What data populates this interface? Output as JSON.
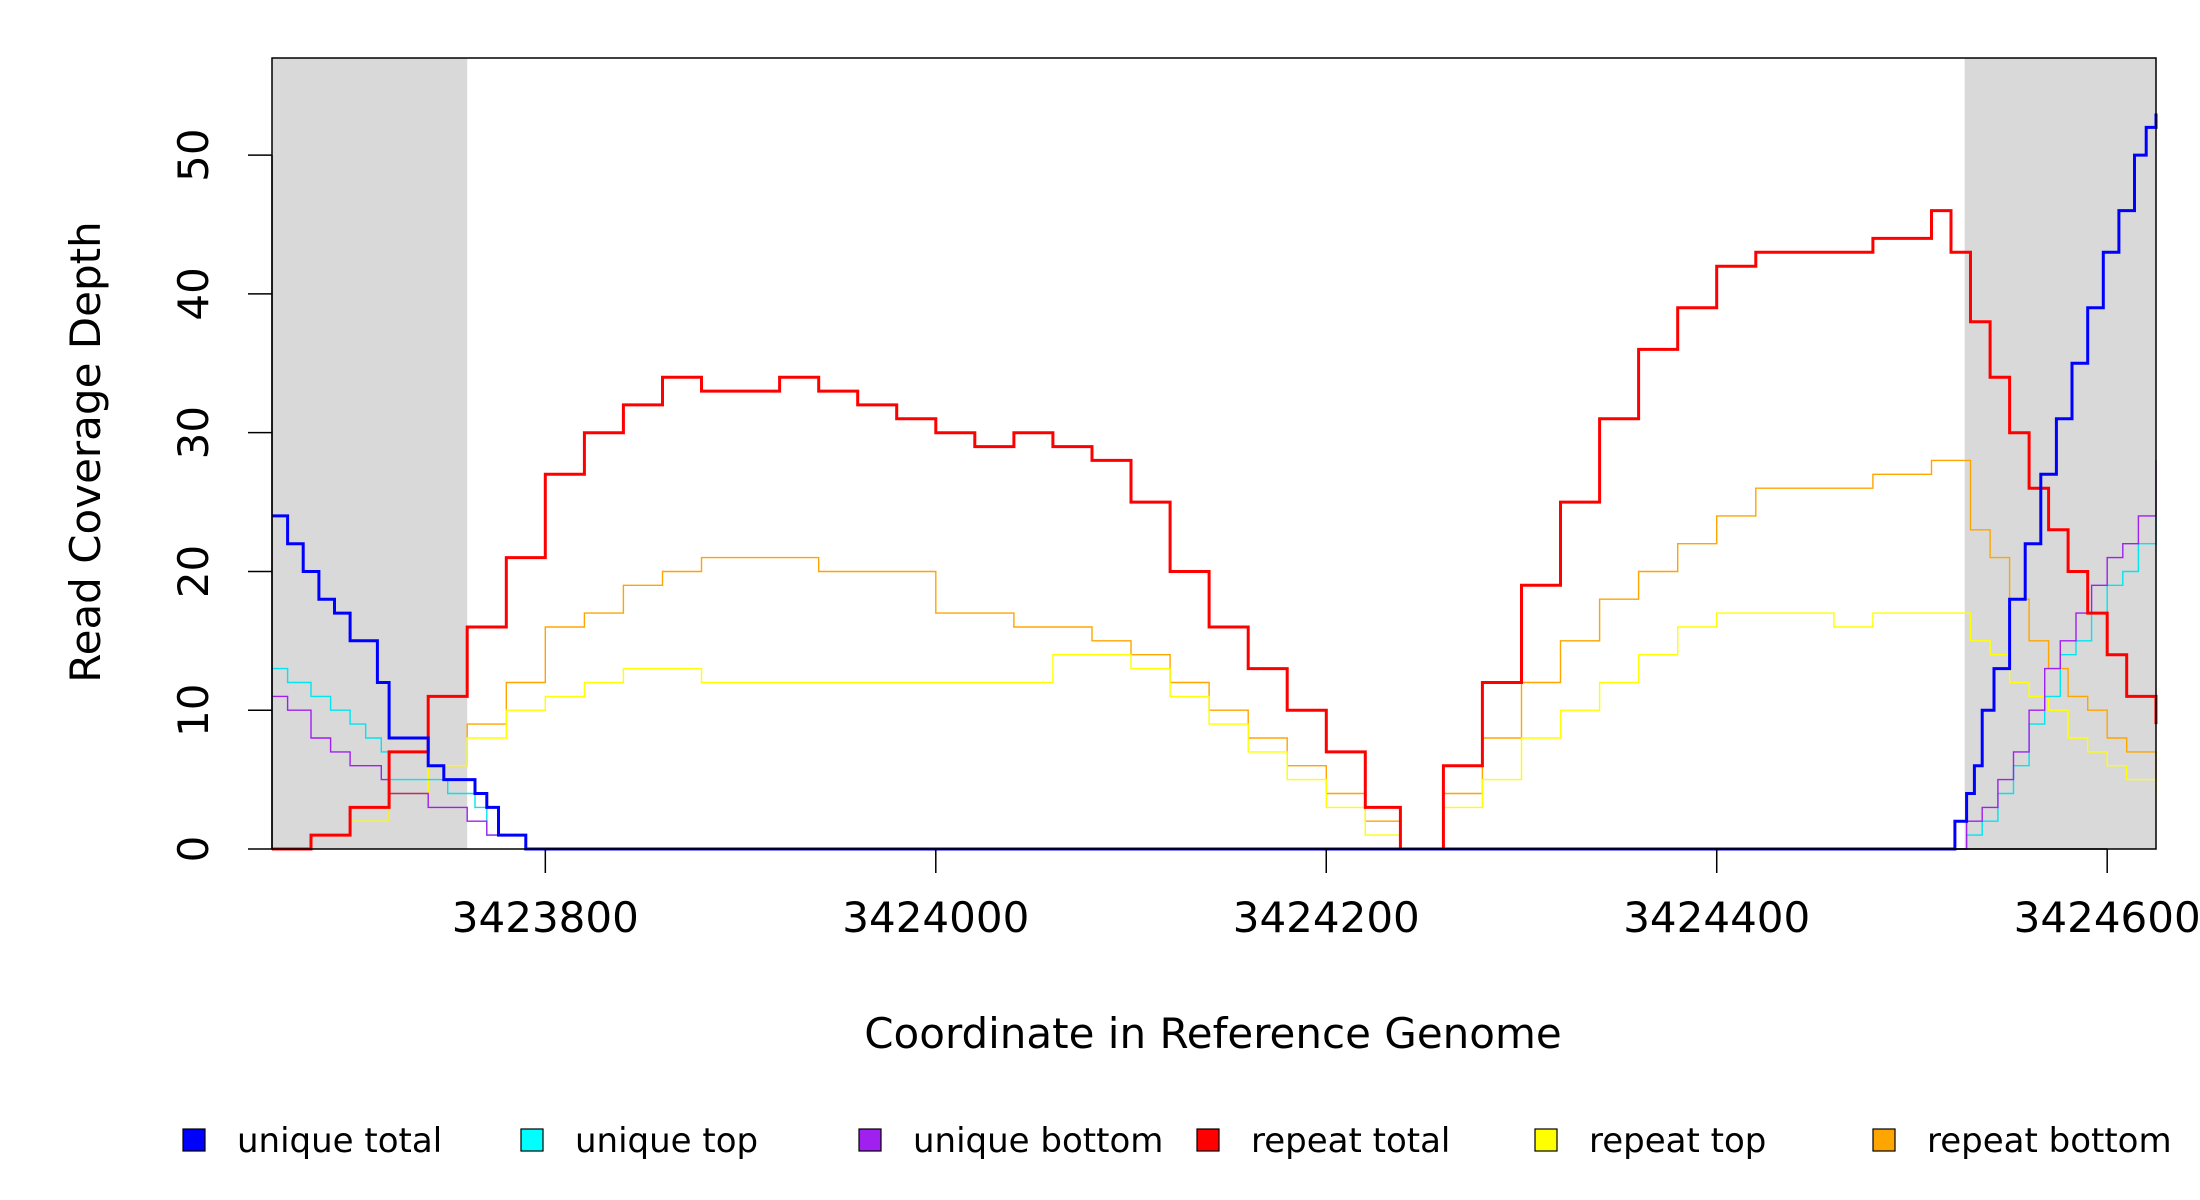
{
  "chart_data": {
    "type": "line",
    "title": "",
    "xlabel": "Coordinate in Reference Genome",
    "ylabel": "Read Coverage Depth",
    "xlim": [
      3423660,
      3424625
    ],
    "ylim": [
      0,
      57
    ],
    "x_ticks": [
      3423800,
      3424000,
      3424200,
      3424400,
      3424600
    ],
    "y_ticks": [
      0,
      10,
      20,
      30,
      40,
      50
    ],
    "x_tick_labels": [
      "3423800",
      "3424000",
      "3424200",
      "3424400",
      "3424600"
    ],
    "y_tick_labels": [
      "0",
      "10",
      "20",
      "30",
      "40",
      "50"
    ],
    "grid": false,
    "legend_position": "bottom",
    "shaded_regions": [
      {
        "x_start": 3423660,
        "x_end": 3423760
      },
      {
        "x_start": 3424527,
        "x_end": 3424625
      }
    ],
    "series": [
      {
        "name": "unique total",
        "color": "#0000ff",
        "width": 3,
        "x": [
          3423660,
          3423668,
          3423676,
          3423684,
          3423692,
          3423700,
          3423708,
          3423714,
          3423720,
          3423726,
          3423732,
          3423740,
          3423748,
          3423756,
          3423764,
          3423770,
          3423776,
          3423782,
          3423790,
          3424520,
          3424522,
          3424528,
          3424532,
          3424536,
          3424542,
          3424550,
          3424558,
          3424566,
          3424574,
          3424582,
          3424590,
          3424598,
          3424606,
          3424614,
          3424620,
          3424625
        ],
        "y": [
          24,
          22,
          20,
          18,
          17,
          15,
          15,
          12,
          8,
          8,
          8,
          6,
          5,
          5,
          4,
          3,
          1,
          1,
          0,
          0,
          2,
          4,
          6,
          10,
          13,
          18,
          22,
          27,
          31,
          35,
          39,
          43,
          46,
          50,
          52,
          53
        ]
      },
      {
        "name": "unique top",
        "color": "#00e5ee",
        "width": 1.4,
        "x": [
          3423660,
          3423668,
          3423680,
          3423690,
          3423700,
          3423708,
          3423716,
          3423720,
          3423730,
          3423740,
          3423750,
          3423758,
          3423764,
          3423770,
          3423790,
          3424520,
          3424528,
          3424536,
          3424544,
          3424552,
          3424560,
          3424568,
          3424576,
          3424584,
          3424592,
          3424600,
          3424608,
          3424616,
          3424625
        ],
        "y": [
          13,
          12,
          11,
          10,
          9,
          8,
          7,
          5,
          5,
          5,
          4,
          4,
          3,
          1,
          0,
          0,
          1,
          2,
          4,
          6,
          9,
          11,
          14,
          15,
          17,
          19,
          20,
          22,
          24
        ]
      },
      {
        "name": "unique bottom",
        "color": "#a020f0",
        "width": 1.4,
        "x": [
          3423660,
          3423668,
          3423680,
          3423690,
          3423700,
          3423708,
          3423716,
          3423720,
          3423730,
          3423740,
          3423750,
          3423760,
          3423770,
          3423790,
          3424520,
          3424528,
          3424536,
          3424544,
          3424552,
          3424560,
          3424568,
          3424576,
          3424584,
          3424592,
          3424600,
          3424608,
          3424616,
          3424625
        ],
        "y": [
          11,
          10,
          8,
          7,
          6,
          6,
          5,
          4,
          4,
          3,
          3,
          2,
          1,
          0,
          0,
          2,
          3,
          5,
          7,
          10,
          13,
          15,
          17,
          19,
          21,
          22,
          24,
          28
        ]
      },
      {
        "name": "repeat total",
        "color": "#ff0000",
        "width": 3,
        "x": [
          3423660,
          3423680,
          3423700,
          3423720,
          3423740,
          3423760,
          3423780,
          3423800,
          3423820,
          3423840,
          3423860,
          3423880,
          3423900,
          3423920,
          3423940,
          3423960,
          3423980,
          3424000,
          3424020,
          3424040,
          3424060,
          3424080,
          3424100,
          3424120,
          3424140,
          3424160,
          3424180,
          3424200,
          3424220,
          3424238,
          3424260,
          3424280,
          3424300,
          3424320,
          3424340,
          3424360,
          3424380,
          3424400,
          3424420,
          3424440,
          3424460,
          3424480,
          3424500,
          3424510,
          3424520,
          3424530,
          3424540,
          3424550,
          3424560,
          3424570,
          3424580,
          3424590,
          3424600,
          3424610,
          3424625
        ],
        "y": [
          0,
          1,
          3,
          7,
          11,
          16,
          21,
          27,
          30,
          32,
          34,
          33,
          33,
          34,
          33,
          32,
          31,
          30,
          29,
          30,
          29,
          28,
          25,
          20,
          16,
          13,
          10,
          7,
          3,
          0,
          6,
          12,
          19,
          25,
          31,
          36,
          39,
          42,
          43,
          43,
          43,
          44,
          44,
          46,
          43,
          38,
          34,
          30,
          26,
          23,
          20,
          17,
          14,
          11,
          9
        ]
      },
      {
        "name": "repeat top",
        "color": "#ffff00",
        "width": 1.4,
        "x": [
          3423660,
          3423680,
          3423700,
          3423720,
          3423740,
          3423760,
          3423780,
          3423800,
          3423820,
          3423840,
          3423860,
          3423880,
          3423900,
          3423920,
          3423940,
          3423960,
          3423980,
          3424000,
          3424020,
          3424040,
          3424060,
          3424080,
          3424100,
          3424120,
          3424140,
          3424160,
          3424180,
          3424200,
          3424220,
          3424238,
          3424260,
          3424280,
          3424300,
          3424320,
          3424340,
          3424360,
          3424380,
          3424400,
          3424420,
          3424440,
          3424460,
          3424480,
          3424500,
          3424510,
          3424520,
          3424530,
          3424540,
          3424550,
          3424560,
          3424570,
          3424580,
          3424590,
          3424600,
          3424610,
          3424625
        ],
        "y": [
          0,
          1,
          2,
          4,
          6,
          8,
          10,
          11,
          12,
          13,
          13,
          12,
          12,
          12,
          12,
          12,
          12,
          12,
          12,
          12,
          14,
          14,
          13,
          11,
          9,
          7,
          5,
          3,
          1,
          0,
          3,
          5,
          8,
          10,
          12,
          14,
          16,
          17,
          17,
          17,
          16,
          17,
          17,
          17,
          17,
          15,
          14,
          12,
          11,
          10,
          8,
          7,
          6,
          5,
          4
        ]
      },
      {
        "name": "repeat bottom",
        "color": "#ffa500",
        "width": 1.4,
        "x": [
          3423660,
          3423680,
          3423700,
          3423720,
          3423740,
          3423760,
          3423780,
          3423800,
          3423820,
          3423840,
          3423860,
          3423880,
          3423900,
          3423920,
          3423940,
          3423960,
          3423980,
          3424000,
          3424020,
          3424040,
          3424060,
          3424080,
          3424100,
          3424120,
          3424140,
          3424160,
          3424180,
          3424200,
          3424220,
          3424238,
          3424260,
          3424280,
          3424300,
          3424320,
          3424340,
          3424360,
          3424380,
          3424400,
          3424420,
          3424440,
          3424460,
          3424480,
          3424500,
          3424510,
          3424520,
          3424530,
          3424540,
          3424550,
          3424560,
          3424570,
          3424580,
          3424590,
          3424600,
          3424610,
          3424625
        ],
        "y": [
          0,
          1,
          2,
          4,
          6,
          9,
          12,
          16,
          17,
          19,
          20,
          21,
          21,
          21,
          20,
          20,
          20,
          17,
          17,
          16,
          16,
          15,
          14,
          12,
          10,
          8,
          6,
          4,
          2,
          0,
          4,
          8,
          12,
          15,
          18,
          20,
          22,
          24,
          26,
          26,
          26,
          27,
          27,
          28,
          28,
          23,
          21,
          18,
          15,
          13,
          11,
          10,
          8,
          7,
          5
        ]
      }
    ]
  },
  "legend": {
    "items": [
      {
        "label": "unique total",
        "color": "#0000ff"
      },
      {
        "label": "unique top",
        "color": "#00ffff"
      },
      {
        "label": "unique bottom",
        "color": "#a020f0"
      },
      {
        "label": "repeat total",
        "color": "#ff0000"
      },
      {
        "label": "repeat top",
        "color": "#ffff00"
      },
      {
        "label": "repeat bottom",
        "color": "#ffa500"
      }
    ]
  }
}
